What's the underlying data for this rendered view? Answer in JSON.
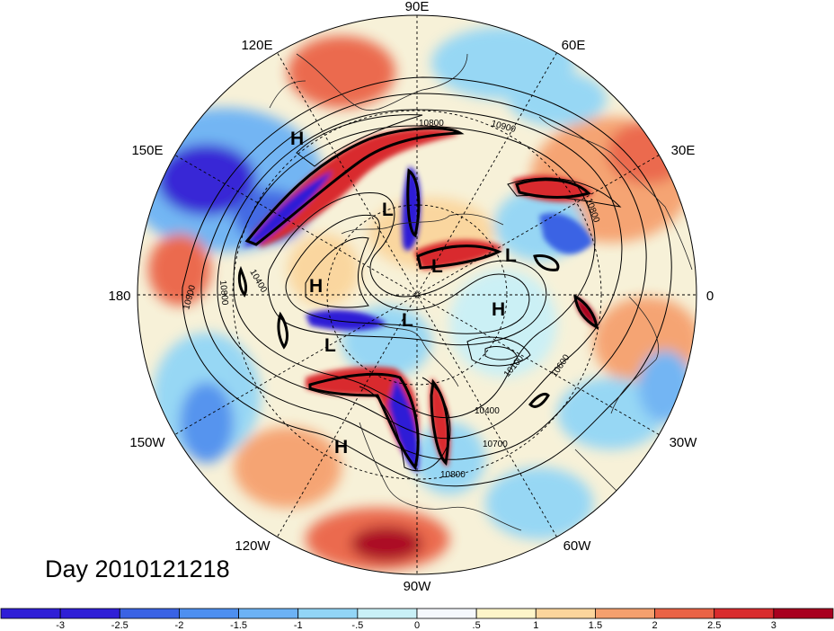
{
  "title": "Day 2010121218",
  "longitude_labels": [
    "90E",
    "60E",
    "30E",
    "0",
    "30W",
    "60W",
    "90W",
    "120W",
    "150W",
    "180",
    "150E",
    "120E"
  ],
  "pressure_centers": [
    {
      "label": "H",
      "name": "high-east-siberia"
    },
    {
      "label": "L",
      "name": "low-kara-sea"
    },
    {
      "label": "L",
      "name": "low-barents"
    },
    {
      "label": "L",
      "name": "low-europe"
    },
    {
      "label": "H",
      "name": "high-bering"
    },
    {
      "label": "L",
      "name": "low-pole"
    },
    {
      "label": "H",
      "name": "high-atlantic"
    },
    {
      "label": "L",
      "name": "low-alaska"
    },
    {
      "label": "H",
      "name": "high-pacific"
    }
  ],
  "contour_labels": [
    "10800",
    "10900",
    "10800",
    "10400",
    "10900",
    "10800",
    "10100",
    "10600",
    "10400",
    "10700",
    "10800"
  ],
  "colorbar": {
    "ticks": [
      "-3",
      "-2.5",
      "-2",
      "-1.5",
      "-1",
      "-.5",
      "0",
      ".5",
      "1",
      "1.5",
      "2",
      "2.5",
      "3"
    ],
    "colors": [
      "#2f1fd6",
      "#3a63e4",
      "#4d8ff0",
      "#6cb2f5",
      "#92d5f6",
      "#c9f0f7",
      "#f5f8fc",
      "#fdf5c9",
      "#fbd59c",
      "#f5a06e",
      "#ea6346",
      "#d92c2e",
      "#a8001f"
    ]
  }
}
